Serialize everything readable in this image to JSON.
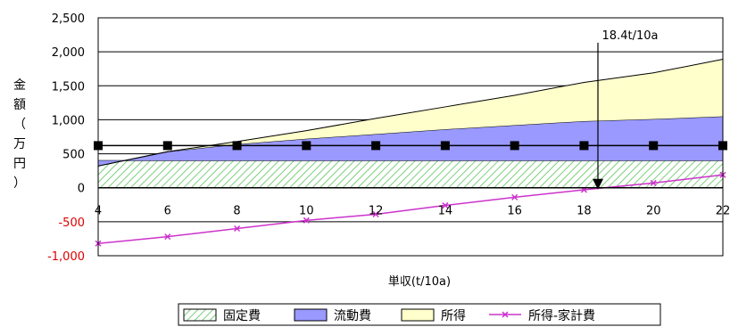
{
  "chart_data": {
    "type": "area",
    "x": [
      4,
      6,
      8,
      10,
      12,
      14,
      16,
      18,
      20,
      22
    ],
    "xticks": [
      "4",
      "6",
      "8",
      "10",
      "12",
      "14",
      "16",
      "18",
      "20",
      "22"
    ],
    "xlim": [
      4,
      22
    ],
    "ylim": [
      -1000,
      2500
    ],
    "yticks": [
      "2,500",
      "2,000",
      "1,500",
      "1,000",
      "500",
      "0",
      "-500",
      "-1,000"
    ],
    "ytick_values": [
      2500,
      2000,
      1500,
      1000,
      500,
      0,
      -500,
      -1000
    ],
    "xlabel": "単収(t/10a)",
    "ylabel_chars": [
      "金",
      "額",
      "（",
      "万",
      "円",
      "）"
    ],
    "series": [
      {
        "name": "固定費",
        "kind": "stacked-area",
        "color": "#c6efce",
        "values": [
          400,
          400,
          400,
          400,
          400,
          400,
          400,
          400,
          400,
          400
        ]
      },
      {
        "name": "流動費",
        "kind": "stacked-area",
        "color": "#9999ff",
        "values": [
          -80,
          130,
          240,
          320,
          390,
          460,
          520,
          580,
          610,
          650
        ]
      },
      {
        "name": "所得",
        "kind": "stacked-area",
        "color": "#ffffcc",
        "values": [
          0,
          0,
          40,
          120,
          230,
          330,
          440,
          570,
          680,
          840
        ]
      },
      {
        "name": "所得-家計費",
        "kind": "line",
        "color": "#cc33cc",
        "values": [
          -820,
          -720,
          -600,
          -480,
          -390,
          -260,
          -140,
          -30,
          70,
          190
        ]
      }
    ],
    "reference_line": {
      "values": [
        620,
        620,
        620,
        620,
        620,
        620,
        620,
        620,
        620,
        620
      ],
      "color": "#000000"
    },
    "annotation": {
      "text": "18.4t/10a",
      "x": 18.4
    },
    "grid": true,
    "legend_position": "bottom"
  }
}
